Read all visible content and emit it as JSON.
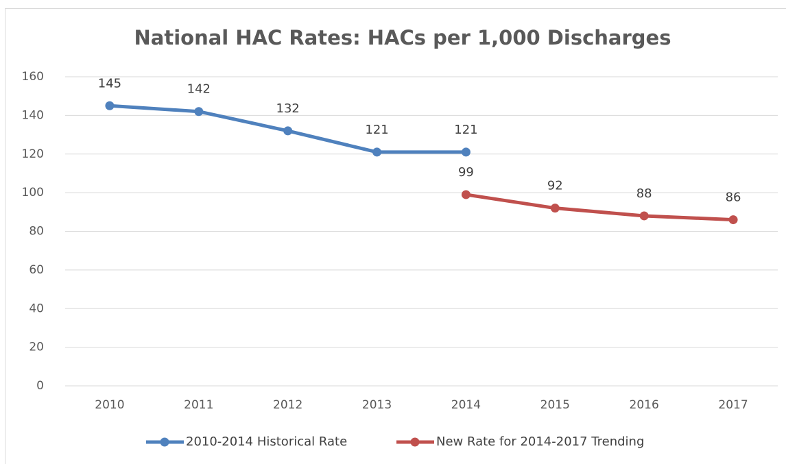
{
  "chart_data": {
    "type": "line",
    "title": "National HAC Rates: HACs per 1,000 Discharges",
    "categories": [
      "2010",
      "2011",
      "2012",
      "2013",
      "2014",
      "2015",
      "2016",
      "2017"
    ],
    "series": [
      {
        "name": "2010-2014 Historical Rate",
        "color": "#4f81bd",
        "values": [
          145,
          142,
          132,
          121,
          121,
          null,
          null,
          null
        ]
      },
      {
        "name": "New Rate for 2014-2017 Trending",
        "color": "#c0504d",
        "values": [
          null,
          null,
          null,
          null,
          99,
          92,
          88,
          86
        ]
      }
    ],
    "ylim": [
      0,
      160
    ],
    "yticks": [
      0,
      20,
      40,
      60,
      80,
      100,
      120,
      140,
      160
    ],
    "grid": true,
    "legend": "bottom"
  }
}
